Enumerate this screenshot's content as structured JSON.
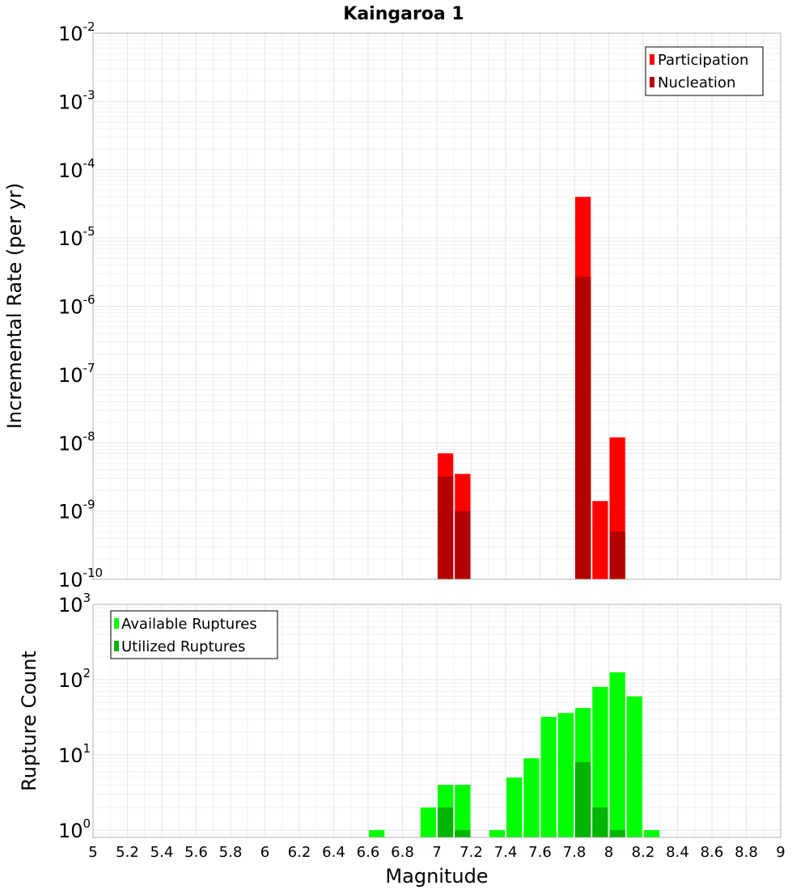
{
  "chart_data": [
    {
      "type": "bar",
      "title": "Kaingaroa 1",
      "xlabel": "",
      "ylabel": "Incremental Rate (per yr)",
      "yscale": "log",
      "ylim": [
        1e-10,
        0.01
      ],
      "xlim": [
        5,
        9
      ],
      "legend": "top-right",
      "grid": true,
      "series": [
        {
          "name": "Participation",
          "color": "#ff0000",
          "x": [
            7.05,
            7.15,
            7.85,
            7.95,
            8.05
          ],
          "values": [
            7e-09,
            3.5e-09,
            4e-05,
            1.4e-09,
            1.2e-08
          ]
        },
        {
          "name": "Nucleation",
          "color": "#b40000",
          "x": [
            7.05,
            7.15,
            7.85,
            8.05
          ],
          "values": [
            3.2e-09,
            1e-09,
            2.7e-06,
            5e-10
          ]
        }
      ],
      "y_ticks": [
        {
          "base": "10",
          "exp": "-10"
        },
        {
          "base": "10",
          "exp": "-9"
        },
        {
          "base": "10",
          "exp": "-8"
        },
        {
          "base": "10",
          "exp": "-7"
        },
        {
          "base": "10",
          "exp": "-6"
        },
        {
          "base": "10",
          "exp": "-5"
        },
        {
          "base": "10",
          "exp": "-4"
        },
        {
          "base": "10",
          "exp": "-3"
        },
        {
          "base": "10",
          "exp": "-2"
        }
      ]
    },
    {
      "type": "bar",
      "title": "",
      "xlabel": "Magnitude",
      "ylabel": "Rupture Count",
      "yscale": "log",
      "ylim": [
        0.8,
        1000
      ],
      "xlim": [
        5,
        9
      ],
      "legend": "top-left",
      "grid": true,
      "x_ticks": [
        "5",
        "5.2",
        "5.4",
        "5.6",
        "5.8",
        "6",
        "6.2",
        "6.4",
        "6.6",
        "6.8",
        "7",
        "7.2",
        "7.4",
        "7.6",
        "7.8",
        "8",
        "8.2",
        "8.4",
        "8.6",
        "8.8",
        "9"
      ],
      "series": [
        {
          "name": "Available Ruptures",
          "color": "#00ff00",
          "x": [
            6.65,
            6.95,
            7.05,
            7.15,
            7.35,
            7.45,
            7.55,
            7.65,
            7.75,
            7.85,
            7.95,
            8.05,
            8.15,
            8.25
          ],
          "values": [
            1,
            2,
            4,
            4,
            1,
            5,
            9,
            32,
            36,
            42,
            80,
            125,
            60,
            1
          ]
        },
        {
          "name": "Utilized Ruptures",
          "color": "#00b400",
          "x": [
            7.05,
            7.15,
            7.85,
            7.95,
            8.05
          ],
          "values": [
            2,
            1,
            8,
            2,
            1
          ]
        }
      ],
      "y_ticks": [
        {
          "base": "10",
          "exp": "0"
        },
        {
          "base": "10",
          "exp": "1"
        },
        {
          "base": "10",
          "exp": "2"
        },
        {
          "base": "10",
          "exp": "3"
        }
      ]
    }
  ]
}
